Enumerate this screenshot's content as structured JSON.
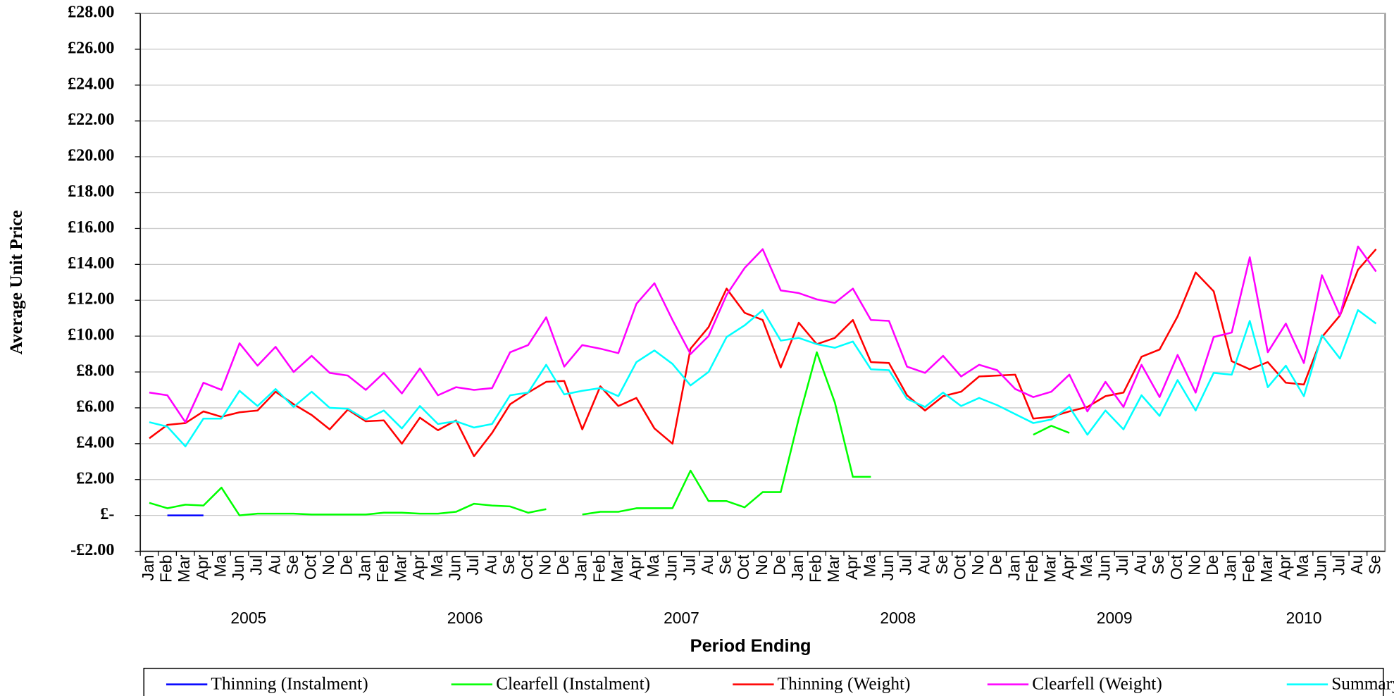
{
  "chart_data": {
    "type": "line",
    "y_axis_label": "Average Unit Price",
    "x_axis_label": "Period Ending",
    "categories": [
      "Jan",
      "Feb",
      "Mar",
      "Apr",
      "Ma",
      "Jun",
      "Jul",
      "Au",
      "Se",
      "Oct",
      "No",
      "De",
      "Jan",
      "Feb",
      "Mar",
      "Apr",
      "Ma",
      "Jun",
      "Jul",
      "Au",
      "Se",
      "Oct",
      "No",
      "De",
      "Jan",
      "Feb",
      "Mar",
      "Apr",
      "Ma",
      "Jun",
      "Jul",
      "Au",
      "Se",
      "Oct",
      "No",
      "De",
      "Jan",
      "Feb",
      "Mar",
      "Apr",
      "Ma",
      "Jun",
      "Jul",
      "Au",
      "Se",
      "Oct",
      "No",
      "De",
      "Jan",
      "Feb",
      "Mar",
      "Apr",
      "Ma",
      "Jun",
      "Jul",
      "Au",
      "Se",
      "Oct",
      "No",
      "De",
      "Jan",
      "Feb",
      "Mar",
      "Apr",
      "Ma",
      "Jun",
      "Jul",
      "Au",
      "Se"
    ],
    "years": [
      "2005",
      "2006",
      "2007",
      "2008",
      "2009",
      "2010"
    ],
    "ylim": [
      -2,
      28
    ],
    "yticks": [
      {
        "value": 28,
        "label": "£28.00"
      },
      {
        "value": 26,
        "label": "£26.00"
      },
      {
        "value": 24,
        "label": "£24.00"
      },
      {
        "value": 22,
        "label": "£22.00"
      },
      {
        "value": 20,
        "label": "£20.00"
      },
      {
        "value": 18,
        "label": "£18.00"
      },
      {
        "value": 16,
        "label": "£16.00"
      },
      {
        "value": 14,
        "label": "£14.00"
      },
      {
        "value": 12,
        "label": "£12.00"
      },
      {
        "value": 10,
        "label": "£10.00"
      },
      {
        "value": 8,
        "label": "£8.00"
      },
      {
        "value": 6,
        "label": "£6.00"
      },
      {
        "value": 4,
        "label": "£4.00"
      },
      {
        "value": 2,
        "label": "£2.00"
      },
      {
        "value": 0,
        "label": "£-"
      },
      {
        "value": -2,
        "label": "-£2.00"
      }
    ],
    "grid": true,
    "legend_position": "bottom",
    "series": [
      {
        "name": "Thinning (Instalment)",
        "color": "#0000ff",
        "values": [
          null,
          0,
          0,
          0,
          null,
          null,
          null,
          null,
          null,
          null,
          null,
          null,
          null,
          null,
          null,
          null,
          null,
          null,
          null,
          null,
          null,
          null,
          null,
          null,
          null,
          null,
          null,
          null,
          null,
          null,
          null,
          null,
          null,
          null,
          null,
          null,
          null,
          null,
          null,
          null,
          null,
          null,
          null,
          null,
          null,
          null,
          null,
          null,
          null,
          null,
          null,
          null,
          null,
          null,
          null,
          null,
          null,
          null,
          null,
          null,
          null,
          null,
          null,
          null,
          null,
          null,
          null,
          null,
          null
        ]
      },
      {
        "name": "Clearfell (Instalment)",
        "color": "#00ff00",
        "values": [
          0.7,
          0.4,
          0.6,
          0.55,
          1.55,
          0,
          0.1,
          0.1,
          0.1,
          0.05,
          0.05,
          0.05,
          0.05,
          0.15,
          0.15,
          0.1,
          0.1,
          0.2,
          0.65,
          0.55,
          0.5,
          0.15,
          0.35,
          null,
          0.05,
          0.2,
          0.2,
          0.4,
          0.4,
          0.4,
          2.5,
          0.8,
          0.8,
          0.45,
          1.3,
          1.3,
          5.4,
          9.1,
          6.3,
          2.15,
          2.15,
          null,
          null,
          null,
          null,
          null,
          null,
          null,
          null,
          4.5,
          5.0,
          4.6,
          null,
          null,
          null,
          null,
          null,
          null,
          null,
          null,
          null,
          null,
          null,
          null,
          null,
          null,
          null,
          null,
          null
        ]
      },
      {
        "name": "Thinning (Weight)",
        "color": "#ff0000",
        "values": [
          4.3,
          5.05,
          5.15,
          5.8,
          5.5,
          5.75,
          5.85,
          6.9,
          6.2,
          5.6,
          4.8,
          5.9,
          5.25,
          5.3,
          4.0,
          5.45,
          4.75,
          5.3,
          3.3,
          4.6,
          6.2,
          6.85,
          7.45,
          7.5,
          4.8,
          7.2,
          6.1,
          6.55,
          4.85,
          4.0,
          9.3,
          10.5,
          12.65,
          11.3,
          10.9,
          8.25,
          10.75,
          9.55,
          9.9,
          10.9,
          8.55,
          8.5,
          6.7,
          5.85,
          6.65,
          6.9,
          7.75,
          7.8,
          7.85,
          5.4,
          5.5,
          5.8,
          6.05,
          6.65,
          6.85,
          8.85,
          9.25,
          11.1,
          13.55,
          12.5,
          8.6,
          8.15,
          8.55,
          7.4,
          7.3,
          9.95,
          11.15,
          13.7,
          14.85
        ]
      },
      {
        "name": "Clearfell (Weight)",
        "color": "#ff00ff",
        "values": [
          6.85,
          6.7,
          5.2,
          7.4,
          7.0,
          9.6,
          8.35,
          9.4,
          8.0,
          8.9,
          7.95,
          7.8,
          7.0,
          7.95,
          6.8,
          8.2,
          6.7,
          7.15,
          7.0,
          7.1,
          9.1,
          9.5,
          11.05,
          8.3,
          9.5,
          9.3,
          9.05,
          11.8,
          12.95,
          10.9,
          9.0,
          10.0,
          12.3,
          13.8,
          14.85,
          12.55,
          12.4,
          12.05,
          11.85,
          12.65,
          10.9,
          10.85,
          8.3,
          7.95,
          8.9,
          7.75,
          8.4,
          8.1,
          7.05,
          6.6,
          6.9,
          7.85,
          5.8,
          7.45,
          6.05,
          8.4,
          6.6,
          8.95,
          6.85,
          9.95,
          10.2,
          14.4,
          9.1,
          10.7,
          8.5,
          13.4,
          11.15,
          15.0,
          13.6
        ]
      },
      {
        "name": "Summary",
        "color": "#00ffff",
        "values": [
          5.2,
          4.95,
          3.85,
          5.4,
          5.4,
          6.95,
          6.1,
          7.05,
          6.05,
          6.9,
          6.0,
          5.95,
          5.35,
          5.85,
          4.85,
          6.1,
          5.1,
          5.25,
          4.9,
          5.1,
          6.7,
          6.85,
          8.4,
          6.75,
          6.95,
          7.1,
          6.65,
          8.55,
          9.2,
          8.45,
          7.25,
          8.0,
          9.95,
          10.6,
          11.45,
          9.75,
          9.9,
          9.55,
          9.35,
          9.7,
          8.15,
          8.1,
          6.5,
          6.05,
          6.85,
          6.1,
          6.55,
          6.15,
          5.65,
          5.15,
          5.35,
          6.05,
          4.5,
          5.85,
          4.8,
          6.7,
          5.55,
          7.55,
          5.85,
          7.95,
          7.85,
          10.85,
          7.15,
          8.35,
          6.65,
          10.05,
          8.75,
          11.45,
          10.7
        ]
      }
    ]
  }
}
